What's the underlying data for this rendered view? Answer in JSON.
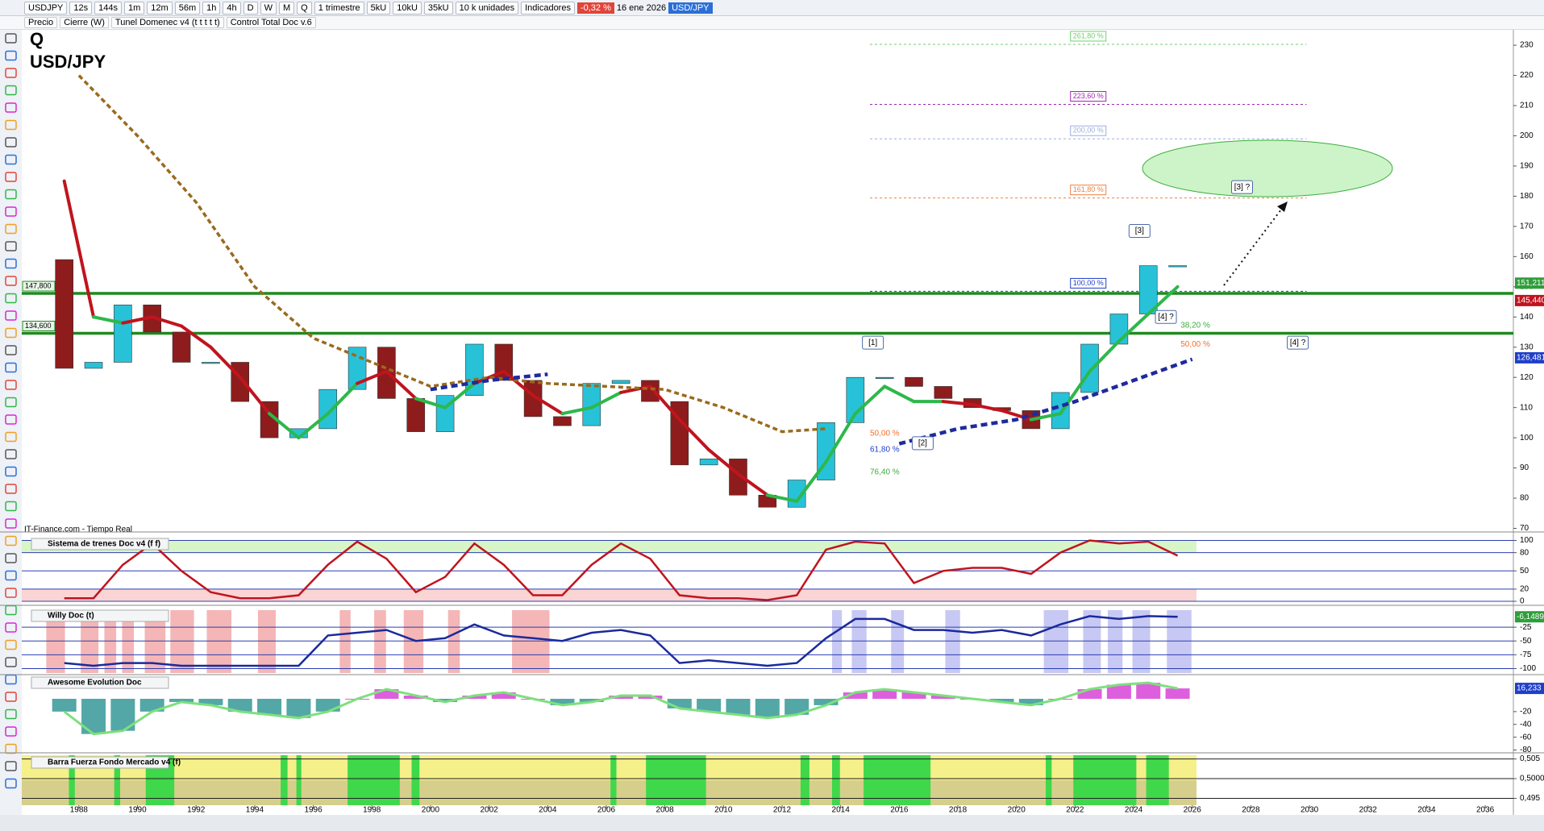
{
  "toolbar": {
    "items": [
      "USDJPY",
      "12s",
      "144s",
      "1m",
      "12m",
      "56m",
      "1h",
      "4h",
      "D",
      "W",
      "M",
      "Q",
      "1 trimestre",
      "5kU",
      "10kU",
      "35kU",
      "10 k unidades",
      "Indicadores"
    ],
    "change": "-0,32 %",
    "date": "16 ene 2026",
    "symbol": "USD/JPY"
  },
  "indicator_bar": [
    "Precio",
    "Cierre (W)",
    "Tunel Domenec v4 (t t t t t)",
    "Control Total Doc v.6"
  ],
  "source": "IT-Finance.com - Tiempo Real",
  "chart_data": [
    {
      "type": "candlestick",
      "title": "Q",
      "subtitle": "USD/JPY",
      "x": [
        1987.5,
        1988.5,
        1989.5,
        1990.5,
        1991.5,
        1992.5,
        1993.5,
        1994.5,
        1995.5,
        1996.5,
        1997.5,
        1998.5,
        1999.5,
        2000.5,
        2001.5,
        2002.5,
        2003.5,
        2004.5,
        2005.5,
        2006.5,
        2007.5,
        2008.5,
        2009.5,
        2010.5,
        2011.5,
        2012.5,
        2013.5,
        2014.5,
        2015.5,
        2016.5,
        2017.5,
        2018.5,
        2019.5,
        2020.5,
        2021.5,
        2022.5,
        2023.5,
        2024.5,
        2025.5
      ],
      "open": [
        159,
        123,
        125,
        144,
        135,
        125,
        125,
        112,
        100,
        103,
        116,
        130,
        113,
        102,
        114,
        131,
        119,
        107,
        104,
        118,
        119,
        112,
        91,
        93,
        81,
        77,
        86,
        105,
        120,
        120,
        117,
        113,
        110,
        109,
        103,
        115,
        131,
        141,
        157
      ],
      "close": [
        123,
        125,
        144,
        135,
        125,
        125,
        112,
        100,
        103,
        116,
        130,
        113,
        102,
        114,
        131,
        119,
        107,
        104,
        118,
        119,
        112,
        91,
        93,
        81,
        77,
        86,
        105,
        120,
        120,
        117,
        113,
        110,
        109,
        103,
        115,
        131,
        141,
        157,
        157
      ],
      "up_color": "#27c2d8",
      "down_color": "#8e1c1c",
      "fast_line": {
        "values": [
          185,
          140,
          138,
          140,
          137,
          130,
          120,
          108,
          100,
          108,
          118,
          122,
          113,
          110,
          118,
          122,
          114,
          108,
          110,
          115,
          117,
          106,
          96,
          88,
          81,
          79,
          92,
          108,
          117,
          112,
          112,
          111,
          109,
          106,
          108,
          122,
          132,
          141,
          150
        ],
        "color_up": "#2db84a",
        "color_down": "#c0141e"
      },
      "slow_line": {
        "x": [
          1988,
          1990,
          1992,
          1994,
          1996,
          1998,
          2000,
          2002,
          2004,
          2006,
          2008,
          2010,
          2012,
          2013.5
        ],
        "values": [
          220,
          200,
          178,
          150,
          133,
          125,
          117,
          120,
          118,
          117,
          116,
          110,
          102,
          103
        ],
        "color": "#9a6a1e",
        "dashed": true
      },
      "trend_line": {
        "x": [
          2000,
          2002,
          2004,
          2010,
          2016,
          2018,
          2020,
          2022,
          2024,
          2026
        ],
        "values": [
          116,
          119,
          121,
          null,
          98,
          103,
          106,
          112,
          119,
          126
        ],
        "color": "#1f2a9c",
        "dashed": true
      },
      "levels": [
        {
          "value": 147.8,
          "label": "147,800"
        },
        {
          "value": 134.6,
          "label": "134,600"
        }
      ],
      "level_color": "#1e8a1e",
      "fib_x": [
        2015,
        2029.9
      ],
      "fib": [
        {
          "price": 230.3,
          "text": "261,80 %",
          "color": "#6fcf6f"
        },
        {
          "price": 210.4,
          "text": "223,60 %",
          "color": "#9c27b0"
        },
        {
          "price": 199,
          "text": "200,00 %",
          "color": "#9aaee0"
        },
        {
          "price": 179.4,
          "text": "161,80 %",
          "color": "#f08040"
        },
        {
          "price": 148.5,
          "text": "100,00 %",
          "color": "#1e3fc8"
        }
      ],
      "fib_lower": [
        {
          "x": 2025.6,
          "price": 137.2,
          "text": "38,20 %",
          "color": "#3cae3c"
        },
        {
          "x": 2025.6,
          "price": 130.9,
          "text": "50,00 %",
          "color": "#f07030"
        },
        {
          "x": 2015,
          "price": 101.4,
          "text": "50,00 %",
          "color": "#f07030"
        },
        {
          "x": 2015,
          "price": 96,
          "text": "61,80 %",
          "color": "#1e3fc8"
        },
        {
          "x": 2015,
          "price": 88.6,
          "text": "76,40 %",
          "color": "#3cae3c"
        }
      ],
      "annotations": [
        {
          "x": 2015.1,
          "price": 131.5,
          "text": "[1]"
        },
        {
          "x": 2016.8,
          "price": 98.2,
          "text": "[2]"
        },
        {
          "x": 2024.2,
          "price": 168.5,
          "text": "[3]"
        },
        {
          "x": 2025.1,
          "price": 140,
          "text": "[4] ?"
        },
        {
          "x": 2027.7,
          "price": 183,
          "text": "[3] ?"
        },
        {
          "x": 2029.6,
          "price": 131.5,
          "text": "[4] ?"
        }
      ],
      "price_tags": [
        {
          "value": 151.211,
          "label": "151,211",
          "color": "#2e9e3a"
        },
        {
          "value": 145.44,
          "label": "145,440",
          "color": "#c0141e"
        },
        {
          "value": 126.481,
          "label": "126,481",
          "color": "#1e3fc8"
        }
      ],
      "xlim": [
        1986.05,
        2036.96
      ],
      "xticks": [
        1988,
        1990,
        1992,
        1994,
        1996,
        1998,
        2000,
        2002,
        2004,
        2006,
        2008,
        2010,
        2012,
        2014,
        2016,
        2018,
        2020,
        2022,
        2024,
        2026,
        2028,
        2030,
        2032,
        2034,
        2036
      ],
      "ylim": [
        68.8,
        235.1
      ],
      "yticks": [
        70,
        80,
        90,
        100,
        110,
        120,
        130,
        140,
        150,
        160,
        170,
        180,
        190,
        200,
        210,
        220,
        230
      ]
    },
    {
      "type": "line",
      "title": "Sistema de trenes Doc v4 (f f)",
      "x": [
        1987.5,
        1988.5,
        1989.5,
        1990.5,
        1991.5,
        1992.5,
        1993.5,
        1994.5,
        1995.5,
        1996.5,
        1997.5,
        1998.5,
        1999.5,
        2000.5,
        2001.5,
        2002.5,
        2003.5,
        2004.5,
        2005.5,
        2006.5,
        2007.5,
        2008.5,
        2009.5,
        2010.5,
        2011.5,
        2012.5,
        2013.5,
        2014.5,
        2015.5,
        2016.5,
        2017.5,
        2018.5,
        2019.5,
        2020.5,
        2021.5,
        2022.5,
        2023.5,
        2024.5,
        2025.5
      ],
      "values": [
        5,
        5,
        60,
        95,
        50,
        15,
        5,
        5,
        10,
        60,
        98,
        70,
        15,
        40,
        95,
        60,
        10,
        10,
        60,
        95,
        70,
        10,
        5,
        5,
        2,
        10,
        85,
        98,
        95,
        30,
        50,
        55,
        55,
        45,
        80,
        100,
        95,
        98,
        75
      ],
      "color": "#c0141e",
      "ylim": [
        -6.6,
        106
      ],
      "yticks": [
        100,
        80,
        50,
        20,
        0
      ]
    },
    {
      "type": "line",
      "title": "Willy Doc (t)",
      "x": [
        1987.5,
        1988.5,
        1989.5,
        1990.5,
        1991.5,
        1992.5,
        1993.5,
        1994.5,
        1995.5,
        1996.5,
        1997.5,
        1998.5,
        1999.5,
        2000.5,
        2001.5,
        2002.5,
        2003.5,
        2004.5,
        2005.5,
        2006.5,
        2007.5,
        2008.5,
        2009.5,
        2010.5,
        2011.5,
        2012.5,
        2013.5,
        2014.5,
        2015.5,
        2016.5,
        2017.5,
        2018.5,
        2019.5,
        2020.5,
        2021.5,
        2022.5,
        2023.5,
        2024.5,
        2025.5
      ],
      "values": [
        -90,
        -95,
        -90,
        -90,
        -95,
        -95,
        -95,
        -95,
        -95,
        -40,
        -35,
        -30,
        -50,
        -45,
        -20,
        -40,
        -45,
        -50,
        -35,
        -30,
        -40,
        -90,
        -85,
        -90,
        -95,
        -90,
        -45,
        -10,
        -10,
        -30,
        -30,
        -35,
        -30,
        -40,
        -20,
        -5,
        -10,
        -5,
        -6.1489
      ],
      "color": "#1a2a9c",
      "tags": [
        {
          "value": -6.1489,
          "label": "-6,1489",
          "color": "#2e9e3a"
        }
      ],
      "ylim": [
        -111,
        8.8
      ],
      "yticks": [
        -25,
        -50,
        -75,
        -100
      ]
    },
    {
      "type": "histogram-line",
      "title": "Awesome Evolution Doc",
      "x": [
        1987.5,
        1988.5,
        1989.5,
        1990.5,
        1991.5,
        1992.5,
        1993.5,
        1994.5,
        1995.5,
        1996.5,
        1997.5,
        1998.5,
        1999.5,
        2000.5,
        2001.5,
        2002.5,
        2003.5,
        2004.5,
        2005.5,
        2006.5,
        2007.5,
        2008.5,
        2009.5,
        2010.5,
        2011.5,
        2012.5,
        2013.5,
        2014.5,
        2015.5,
        2016.5,
        2017.5,
        2018.5,
        2019.5,
        2020.5,
        2021.5,
        2022.5,
        2023.5,
        2024.5,
        2025.5
      ],
      "values": [
        -20,
        -55,
        -50,
        -20,
        -5,
        -10,
        -20,
        -25,
        -30,
        -20,
        0,
        15,
        5,
        -5,
        5,
        10,
        0,
        -10,
        -5,
        5,
        5,
        -15,
        -20,
        -25,
        -30,
        -25,
        -10,
        10,
        15,
        10,
        5,
        0,
        -5,
        -10,
        0,
        15,
        22,
        25,
        16.233
      ],
      "positive_color": "#d22ad2",
      "negative_color": "#1a8a8a",
      "line_color": "#7ee07e",
      "tags": [
        {
          "value": 16.233,
          "label": "16,233",
          "color": "#1e3fc8"
        }
      ],
      "ylim": [
        -84.4,
        36.5
      ],
      "yticks": [
        -20,
        -40,
        -60,
        -80
      ]
    },
    {
      "type": "band",
      "title": "Barra Fuerza Fondo Mercado v4 (f)",
      "ylim": [
        0.49326,
        0.50594
      ],
      "yticks": [
        {
          "value": 0.505,
          "label": "0,505"
        },
        {
          "value": 0.5,
          "label": "0,5000"
        },
        {
          "value": 0.495,
          "label": "0,495"
        }
      ]
    }
  ]
}
